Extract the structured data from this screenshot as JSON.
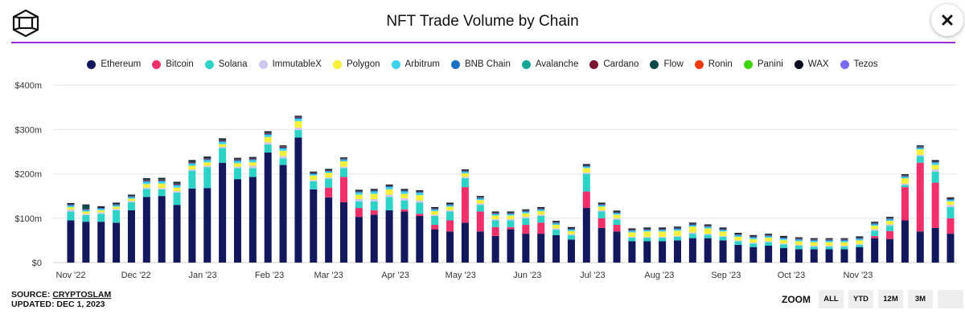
{
  "header": {
    "title": "NFT Trade Volume by Chain",
    "logo_icon": "cube-logo-icon",
    "close_icon": "close-icon"
  },
  "source": {
    "label": "SOURCE:",
    "name": "CRYPTOSLAM",
    "updated_label": "UPDATED:",
    "updated_date": "DEC 1, 2023"
  },
  "zoom": {
    "label": "ZOOM",
    "buttons": [
      "ALL",
      "YTD",
      "12M",
      "3M",
      ""
    ]
  },
  "chart_data": {
    "type": "bar",
    "stacked": true,
    "title": "NFT Trade Volume by Chain",
    "y_ticks": [
      "$0",
      "$100m",
      "$200m",
      "$300m",
      "$400m"
    ],
    "ylim": [
      0,
      400
    ],
    "y_unit": "$m",
    "x_tick_labels": [
      "Nov '22",
      "Dec '22",
      "Jan '23",
      "Feb '23",
      "Mar '23",
      "Apr '23",
      "May '23",
      "Jun '23",
      "Jul '23",
      "Aug '23",
      "Sep '23",
      "Oct '23",
      "Nov '23"
    ],
    "x_tick_positions": [
      0,
      4.3,
      8.7,
      13.1,
      17,
      21.4,
      25.7,
      30.1,
      34.4,
      38.8,
      43.2,
      47.5,
      51.9
    ],
    "legend_position": "top",
    "grid": true,
    "series": [
      {
        "name": "Ethereum",
        "color": "#13175c",
        "values": [
          95,
          92,
          92,
          90,
          118,
          148,
          150,
          130,
          167,
          168,
          225,
          188,
          193,
          248,
          220,
          282,
          165,
          147,
          136,
          103,
          108,
          118,
          115,
          105,
          75,
          70,
          90,
          70,
          60,
          75,
          65,
          65,
          62,
          52,
          123,
          78,
          70,
          48,
          48,
          48,
          50,
          55,
          55,
          50,
          40,
          35,
          38,
          33,
          30,
          30,
          30,
          30,
          35,
          55,
          53,
          95,
          70,
          78,
          65
        ]
      },
      {
        "name": "Bitcoin",
        "color": "#f0306a",
        "values": [
          0,
          0,
          0,
          0,
          0,
          0,
          0,
          0,
          0,
          0,
          0,
          0,
          0,
          0,
          0,
          0,
          0,
          22,
          57,
          20,
          10,
          0,
          5,
          5,
          10,
          25,
          80,
          45,
          20,
          5,
          20,
          25,
          0,
          0,
          37,
          22,
          15,
          0,
          0,
          0,
          0,
          0,
          0,
          0,
          0,
          0,
          0,
          0,
          0,
          0,
          0,
          0,
          0,
          5,
          18,
          75,
          155,
          102,
          35
        ]
      },
      {
        "name": "Solana",
        "color": "#2ed3c8",
        "values": [
          20,
          15,
          18,
          28,
          18,
          18,
          15,
          28,
          40,
          47,
          33,
          25,
          20,
          18,
          15,
          17,
          18,
          20,
          20,
          15,
          20,
          30,
          20,
          25,
          20,
          20,
          20,
          15,
          15,
          15,
          15,
          15,
          12,
          10,
          40,
          15,
          12,
          8,
          8,
          8,
          8,
          10,
          8,
          8,
          8,
          8,
          8,
          8,
          8,
          6,
          6,
          6,
          5,
          12,
          12,
          5,
          15,
          25,
          25
        ]
      },
      {
        "name": "ImmutableX",
        "color": "#cfc7ef",
        "values": [
          5,
          3,
          3,
          3,
          3,
          3,
          3,
          3,
          3,
          3,
          3,
          3,
          5,
          5,
          5,
          5,
          3,
          3,
          3,
          5,
          5,
          5,
          5,
          5,
          3,
          3,
          3,
          3,
          3,
          3,
          3,
          3,
          3,
          2,
          3,
          3,
          3,
          2,
          2,
          2,
          2,
          3,
          2,
          2,
          2,
          2,
          2,
          2,
          2,
          2,
          2,
          2,
          2,
          3,
          3,
          3,
          3,
          5,
          5
        ]
      },
      {
        "name": "Polygon",
        "color": "#f6f03a",
        "values": [
          5,
          5,
          5,
          5,
          5,
          8,
          10,
          8,
          8,
          8,
          6,
          8,
          8,
          12,
          12,
          15,
          10,
          10,
          12,
          10,
          12,
          12,
          10,
          12,
          8,
          8,
          8,
          8,
          8,
          8,
          8,
          8,
          8,
          7,
          10,
          8,
          8,
          10,
          12,
          12,
          12,
          13,
          12,
          10,
          8,
          8,
          8,
          8,
          8,
          8,
          8,
          8,
          8,
          8,
          8,
          12,
          12,
          10,
          8
        ]
      },
      {
        "name": "Arbitrum",
        "color": "#3ed2ec",
        "values": [
          3,
          3,
          3,
          3,
          3,
          5,
          5,
          5,
          5,
          5,
          5,
          5,
          5,
          5,
          5,
          5,
          3,
          3,
          3,
          5,
          5,
          5,
          5,
          5,
          3,
          3,
          3,
          3,
          3,
          3,
          3,
          3,
          3,
          3,
          3,
          3,
          3,
          3,
          3,
          3,
          3,
          3,
          3,
          3,
          3,
          3,
          3,
          3,
          3,
          3,
          3,
          3,
          3,
          3,
          3,
          3,
          3,
          5,
          3
        ]
      },
      {
        "name": "BNB Chain",
        "color": "#1e6fc4",
        "values": [
          2,
          2,
          2,
          2,
          2,
          2,
          2,
          2,
          2,
          2,
          2,
          2,
          2,
          2,
          2,
          2,
          2,
          2,
          2,
          2,
          2,
          2,
          2,
          2,
          2,
          2,
          2,
          2,
          2,
          2,
          2,
          2,
          2,
          2,
          2,
          2,
          2,
          2,
          2,
          2,
          2,
          2,
          2,
          2,
          2,
          2,
          2,
          2,
          2,
          2,
          2,
          2,
          2,
          2,
          2,
          2,
          2,
          2,
          2
        ]
      },
      {
        "name": "Avalanche",
        "color": "#17a596",
        "values": [
          0,
          0,
          0,
          0,
          0,
          0,
          0,
          0,
          0,
          0,
          0,
          0,
          0,
          0,
          0,
          0,
          0,
          0,
          0,
          0,
          0,
          0,
          0,
          0,
          0,
          0,
          0,
          0,
          0,
          0,
          0,
          0,
          0,
          0,
          0,
          0,
          0,
          0,
          0,
          0,
          0,
          0,
          0,
          0,
          0,
          0,
          0,
          0,
          0,
          0,
          0,
          0,
          0,
          0,
          0,
          0,
          0,
          0,
          0
        ]
      },
      {
        "name": "Cardano",
        "color": "#7a1430",
        "values": [
          1,
          1,
          1,
          1,
          1,
          2,
          2,
          2,
          2,
          2,
          2,
          2,
          2,
          2,
          2,
          2,
          1,
          1,
          1,
          1,
          1,
          1,
          1,
          1,
          1,
          1,
          1,
          1,
          1,
          1,
          1,
          1,
          1,
          1,
          1,
          1,
          1,
          1,
          1,
          1,
          1,
          1,
          1,
          1,
          1,
          1,
          1,
          1,
          1,
          1,
          1,
          1,
          1,
          1,
          1,
          1,
          1,
          1,
          1
        ]
      },
      {
        "name": "Flow",
        "color": "#0b4a46",
        "values": [
          1,
          8,
          1,
          1,
          1,
          2,
          2,
          2,
          2,
          2,
          2,
          1,
          1,
          2,
          1,
          1,
          1,
          1,
          1,
          1,
          1,
          1,
          1,
          1,
          1,
          1,
          1,
          1,
          1,
          1,
          1,
          1,
          1,
          1,
          1,
          1,
          1,
          1,
          1,
          1,
          1,
          1,
          1,
          1,
          1,
          1,
          1,
          1,
          1,
          1,
          1,
          1,
          1,
          1,
          1,
          1,
          1,
          1,
          1
        ]
      },
      {
        "name": "Ronin",
        "color": "#f23a0e",
        "values": [
          0,
          0,
          0,
          0,
          0,
          0,
          0,
          0,
          0,
          0,
          0,
          0,
          0,
          0,
          0,
          0,
          0,
          0,
          0,
          0,
          0,
          0,
          0,
          0,
          0,
          0,
          0,
          0,
          0,
          0,
          0,
          0,
          0,
          0,
          0,
          0,
          0,
          0,
          0,
          0,
          0,
          0,
          0,
          0,
          0,
          0,
          0,
          0,
          0,
          0,
          0,
          0,
          0,
          0,
          0,
          0,
          0,
          0,
          0
        ]
      },
      {
        "name": "Panini",
        "color": "#3ed414",
        "values": [
          0,
          0,
          0,
          0,
          0,
          0,
          0,
          0,
          0,
          0,
          0,
          0,
          0,
          0,
          0,
          0,
          0,
          0,
          0,
          0,
          0,
          0,
          0,
          0,
          0,
          0,
          0,
          0,
          0,
          0,
          0,
          0,
          0,
          0,
          0,
          0,
          0,
          0,
          0,
          0,
          0,
          0,
          0,
          0,
          0,
          0,
          0,
          0,
          0,
          0,
          0,
          0,
          0,
          0,
          0,
          0,
          0,
          0,
          0
        ]
      },
      {
        "name": "WAX",
        "color": "#0a0a1e",
        "values": [
          2,
          2,
          2,
          2,
          2,
          2,
          2,
          2,
          2,
          2,
          2,
          2,
          2,
          2,
          2,
          2,
          2,
          2,
          2,
          2,
          2,
          2,
          2,
          2,
          2,
          2,
          2,
          2,
          2,
          2,
          2,
          2,
          2,
          2,
          2,
          2,
          2,
          2,
          2,
          2,
          2,
          2,
          2,
          2,
          2,
          2,
          2,
          2,
          2,
          2,
          2,
          2,
          2,
          2,
          2,
          2,
          2,
          2,
          2
        ]
      },
      {
        "name": "Tezos",
        "color": "#7a6af2",
        "values": [
          0,
          0,
          0,
          0,
          0,
          0,
          0,
          0,
          0,
          0,
          0,
          0,
          0,
          0,
          0,
          0,
          0,
          0,
          0,
          0,
          0,
          0,
          0,
          0,
          0,
          0,
          0,
          0,
          0,
          0,
          0,
          0,
          0,
          0,
          0,
          0,
          0,
          0,
          0,
          0,
          0,
          0,
          0,
          0,
          0,
          0,
          0,
          0,
          0,
          0,
          0,
          0,
          0,
          0,
          0,
          0,
          0,
          0,
          0
        ]
      }
    ]
  }
}
